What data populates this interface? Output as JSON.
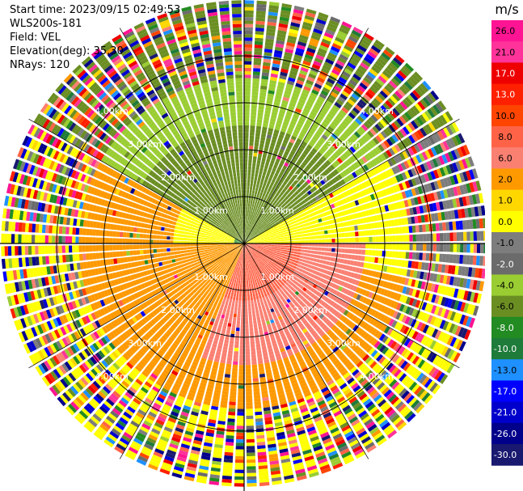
{
  "chart_data": {
    "type": "heatmap",
    "plot_kind": "PPI radial velocity scan",
    "info": {
      "start_time": "Start time: 2023/09/15 02:49:53",
      "instrument": "WLS200s-181",
      "field": "Field: VEL",
      "elevation": "Elevation(deg): 35.30",
      "nrays": "NRays: 120"
    },
    "range_ring_labels": [
      "1.00km",
      "2.00km",
      "3.00km",
      "4.00km"
    ],
    "range_rings_km": [
      1,
      2,
      3,
      4
    ],
    "max_range_km": 5.2,
    "colorbar": {
      "unit": "m/s",
      "ticks": [
        "26.0",
        "21.0",
        "17.0",
        "13.0",
        "10.0",
        "8.0",
        "6.0",
        "2.0",
        "1.0",
        "0.0",
        "-1.0",
        "-2.0",
        "-4.0",
        "-6.0",
        "-8.0",
        "-10.0",
        "-13.0",
        "-17.0",
        "-21.0",
        "-26.0",
        "-30.0"
      ],
      "colors": [
        "#ff1493",
        "#ff3399",
        "#ee0000",
        "#ff2000",
        "#ff4500",
        "#ff6347",
        "#fa8072",
        "#ff9900",
        "#ffd700",
        "#ffff00",
        "#7d7d7d",
        "#6b6b6b",
        "#9acd32",
        "#6b8e23",
        "#228b22",
        "#1e7b3a",
        "#1e90ff",
        "#0000ff",
        "#0000cd",
        "#00008b",
        "#191970"
      ]
    },
    "regions": [
      {
        "azimuth_deg": [
          270,
          360
        ],
        "range_km": [
          0,
          1.2
        ],
        "velocity_ms": -8.0
      },
      {
        "azimuth_deg": [
          300,
          60
        ],
        "range_km": [
          0,
          2.5
        ],
        "velocity_ms": -6.0
      },
      {
        "azimuth_deg": [
          60,
          90
        ],
        "range_km": [
          0.2,
          2.0
        ],
        "velocity_ms": 0.0
      },
      {
        "azimuth_deg": [
          90,
          200
        ],
        "range_km": [
          0,
          1.2
        ],
        "velocity_ms": 8.0
      },
      {
        "azimuth_deg": [
          90,
          230
        ],
        "range_km": [
          1.2,
          2.6
        ],
        "velocity_ms": 6.0
      },
      {
        "azimuth_deg": [
          200,
          290
        ],
        "range_km": [
          0.2,
          3.5
        ],
        "velocity_ms": 2.0
      },
      {
        "azimuth_deg": [
          270,
          300
        ],
        "range_km": [
          0.2,
          1.5
        ],
        "velocity_ms": 0.0
      },
      {
        "azimuth_deg": [
          0,
          360
        ],
        "range_km": [
          3.5,
          5.2
        ],
        "velocity_ms": "noise"
      }
    ]
  }
}
